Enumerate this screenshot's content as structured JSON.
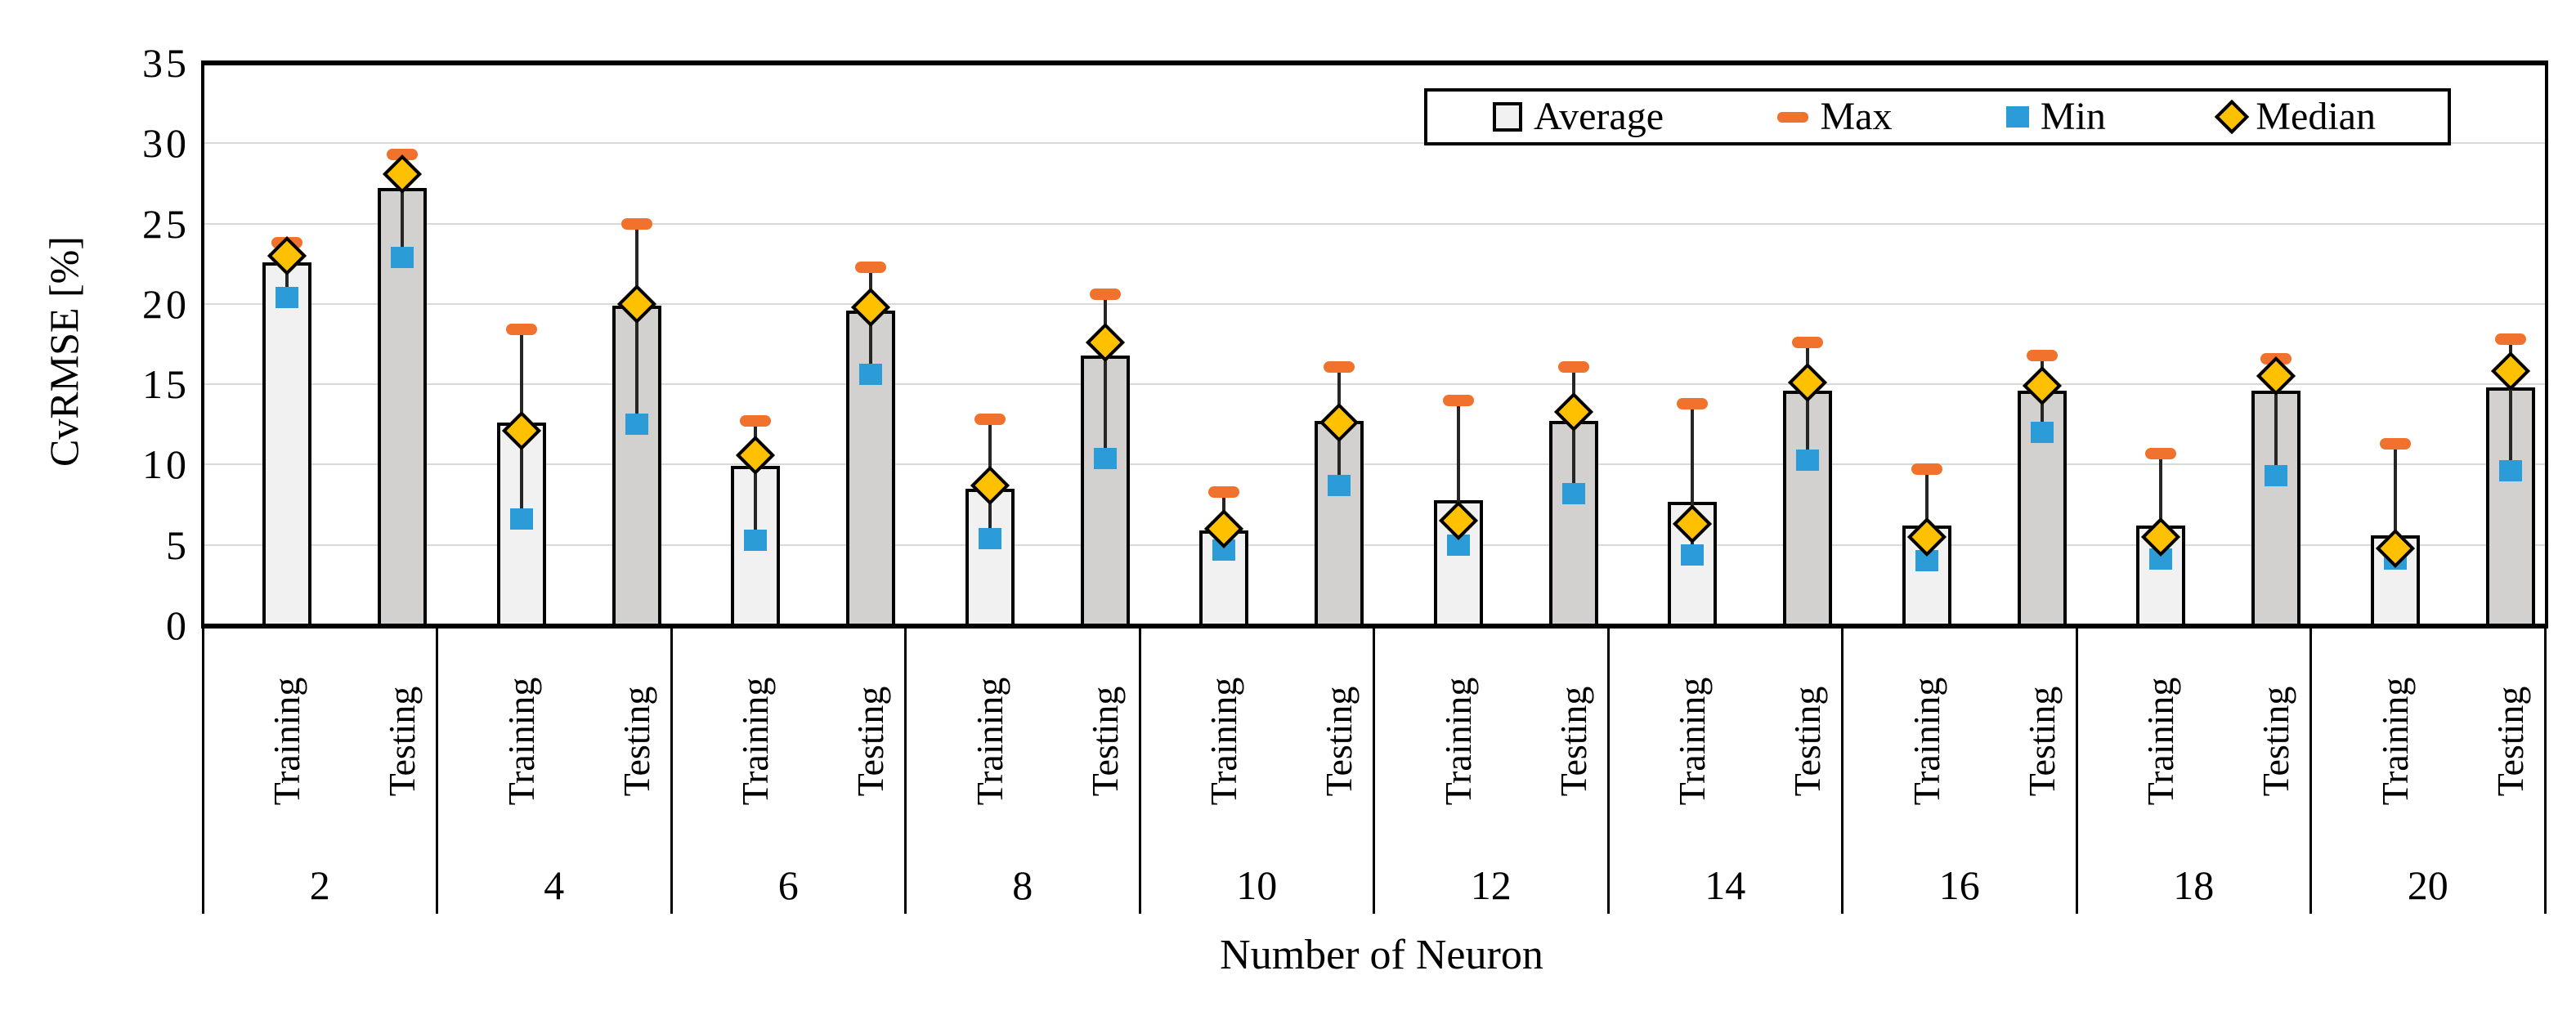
{
  "figure": {
    "background": "#ffffff"
  },
  "colors": {
    "training_fill": "#f1f1f1",
    "testing_fill": "#d3d0d0",
    "bar_border": "#000000",
    "whisker": "#262626",
    "max_marker": "#f0722c",
    "min_marker": "#2b9cd8",
    "median_fill": "#ffc000",
    "median_border": "#000000",
    "gridline": "#d9d9d9",
    "frame": "#000000",
    "text": "#000000"
  },
  "legend": {
    "entries": [
      {
        "icon": "average-swatch",
        "label": "Average"
      },
      {
        "icon": "max-dash",
        "label": "Max"
      },
      {
        "icon": "min-square",
        "label": "Min"
      },
      {
        "icon": "median-diamond",
        "label": "Median"
      }
    ]
  },
  "chart_data": {
    "type": "bar",
    "title": "",
    "ylabel": "CvRMSE [%]",
    "xlabel": "Number of Neuron",
    "ylim": [
      0,
      35
    ],
    "y_ticks": [
      0,
      5,
      10,
      15,
      20,
      25,
      30,
      35
    ],
    "grid": true,
    "legend_position": "top-right",
    "categories": [
      "2",
      "4",
      "6",
      "8",
      "10",
      "12",
      "14",
      "16",
      "18",
      "20"
    ],
    "splits": [
      "Training",
      "Testing"
    ],
    "groups": [
      {
        "neurons": "2",
        "training": {
          "average": 22.6,
          "max": 23.8,
          "min": 20.4,
          "median": 23.0
        },
        "testing": {
          "average": 27.2,
          "max": 29.3,
          "min": 22.9,
          "median": 28.1
        }
      },
      {
        "neurons": "4",
        "training": {
          "average": 12.6,
          "max": 18.4,
          "min": 6.6,
          "median": 12.1
        },
        "testing": {
          "average": 19.9,
          "max": 25.0,
          "min": 12.5,
          "median": 20.0
        }
      },
      {
        "neurons": "6",
        "training": {
          "average": 9.9,
          "max": 12.7,
          "min": 5.3,
          "median": 10.6
        },
        "testing": {
          "average": 19.6,
          "max": 22.3,
          "min": 15.6,
          "median": 19.8
        }
      },
      {
        "neurons": "8",
        "training": {
          "average": 8.5,
          "max": 12.8,
          "min": 5.4,
          "median": 8.7
        },
        "testing": {
          "average": 16.8,
          "max": 20.6,
          "min": 10.4,
          "median": 17.6
        }
      },
      {
        "neurons": "10",
        "training": {
          "average": 5.9,
          "max": 8.3,
          "min": 4.7,
          "median": 6.0
        },
        "testing": {
          "average": 12.7,
          "max": 16.1,
          "min": 8.7,
          "median": 12.6
        }
      },
      {
        "neurons": "12",
        "training": {
          "average": 7.8,
          "max": 14.0,
          "min": 5.0,
          "median": 6.5
        },
        "testing": {
          "average": 12.7,
          "max": 16.1,
          "min": 8.2,
          "median": 13.3
        }
      },
      {
        "neurons": "14",
        "training": {
          "average": 7.7,
          "max": 13.8,
          "min": 4.4,
          "median": 6.3
        },
        "testing": {
          "average": 14.6,
          "max": 17.6,
          "min": 10.3,
          "median": 15.1
        }
      },
      {
        "neurons": "16",
        "training": {
          "average": 6.2,
          "max": 9.7,
          "min": 4.0,
          "median": 5.5
        },
        "testing": {
          "average": 14.6,
          "max": 16.8,
          "min": 12.0,
          "median": 14.9
        }
      },
      {
        "neurons": "18",
        "training": {
          "average": 6.2,
          "max": 10.7,
          "min": 4.1,
          "median": 5.5
        },
        "testing": {
          "average": 14.6,
          "max": 16.6,
          "min": 9.3,
          "median": 15.5
        }
      },
      {
        "neurons": "20",
        "training": {
          "average": 5.6,
          "max": 11.3,
          "min": 4.1,
          "median": 4.8
        },
        "testing": {
          "average": 14.8,
          "max": 17.8,
          "min": 9.6,
          "median": 15.8
        }
      }
    ]
  }
}
